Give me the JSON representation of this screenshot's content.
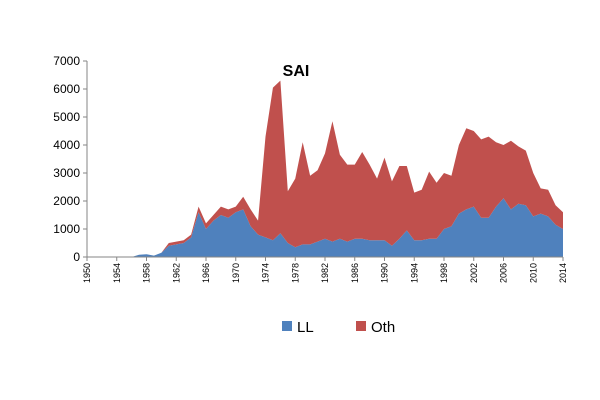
{
  "chart_data": {
    "type": "area",
    "stacked": true,
    "title": "SAI",
    "xlabel": "",
    "ylabel": "",
    "ylim": [
      0,
      7000
    ],
    "yticks": [
      0,
      1000,
      2000,
      3000,
      4000,
      5000,
      6000,
      7000
    ],
    "ytick_labels": [
      "0",
      "1000",
      "2000",
      "3000",
      "4000",
      "5000",
      "6000",
      "7000"
    ],
    "xlim": [
      1950,
      2014
    ],
    "xticks": [
      1950,
      1954,
      1958,
      1962,
      1966,
      1970,
      1974,
      1978,
      1982,
      1986,
      1990,
      1994,
      1998,
      2002,
      2006,
      2010,
      2014
    ],
    "xtick_labels": [
      "1950",
      "1954",
      "1958",
      "1962",
      "1966",
      "1970",
      "1974",
      "1978",
      "1982",
      "1986",
      "1990",
      "1994",
      "1998",
      "2002",
      "2006",
      "2010",
      "2014"
    ],
    "grid": false,
    "legend_position": "bottom",
    "x": [
      1950,
      1951,
      1952,
      1953,
      1954,
      1955,
      1956,
      1957,
      1958,
      1959,
      1960,
      1961,
      1962,
      1963,
      1964,
      1965,
      1966,
      1967,
      1968,
      1969,
      1970,
      1971,
      1972,
      1973,
      1974,
      1975,
      1976,
      1977,
      1978,
      1979,
      1980,
      1981,
      1982,
      1983,
      1984,
      1985,
      1986,
      1987,
      1988,
      1989,
      1990,
      1991,
      1992,
      1993,
      1994,
      1995,
      1996,
      1997,
      1998,
      1999,
      2000,
      2001,
      2002,
      2003,
      2004,
      2005,
      2006,
      2007,
      2008,
      2009,
      2010,
      2011,
      2012,
      2013,
      2014
    ],
    "series": [
      {
        "name": "LL",
        "color": "#4F81BD",
        "values": [
          0,
          0,
          0,
          0,
          0,
          0,
          0,
          80,
          100,
          50,
          150,
          400,
          450,
          500,
          700,
          1600,
          1000,
          1300,
          1500,
          1400,
          1600,
          1700,
          1100,
          800,
          700,
          600,
          850,
          500,
          350,
          450,
          450,
          550,
          650,
          550,
          650,
          550,
          650,
          650,
          600,
          600,
          600,
          400,
          650,
          950,
          600,
          600,
          650,
          650,
          1000,
          1100,
          1550,
          1700,
          1800,
          1400,
          1400,
          1800,
          2100,
          1700,
          1900,
          1850,
          1450,
          1550,
          1450,
          1150,
          1000
        ]
      },
      {
        "name": "Oth",
        "color": "#C0504D",
        "values": [
          0,
          0,
          0,
          0,
          0,
          0,
          0,
          0,
          0,
          0,
          0,
          100,
          100,
          100,
          100,
          200,
          200,
          200,
          300,
          300,
          200,
          450,
          600,
          500,
          3600,
          5450,
          5450,
          1850,
          2450,
          3650,
          2450,
          2550,
          3050,
          4300,
          3000,
          2750,
          2650,
          3100,
          2700,
          2200,
          2950,
          2300,
          2600,
          2300,
          1700,
          1800,
          2400,
          2000,
          2000,
          1800,
          2450,
          2900,
          2700,
          2800,
          2900,
          2300,
          1900,
          2450,
          2050,
          1950,
          1550,
          900,
          950,
          700,
          600
        ]
      }
    ]
  }
}
